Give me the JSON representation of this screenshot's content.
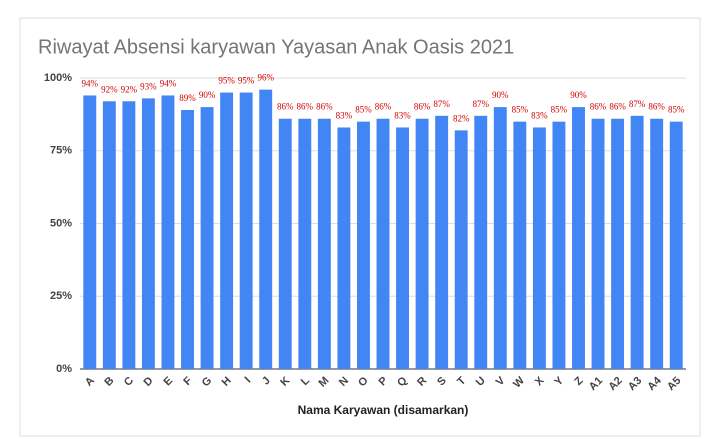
{
  "chart_data": {
    "type": "bar",
    "title": "Riwayat Absensi karyawan Yayasan Anak Oasis 2021",
    "x_label": "Nama Karyawan (disamarkan)",
    "categories": [
      "A",
      "B",
      "C",
      "D",
      "E",
      "F",
      "G",
      "H",
      "I",
      "J",
      "K",
      "L",
      "M",
      "N",
      "O",
      "P",
      "Q",
      "R",
      "S",
      "T",
      "U",
      "V",
      "W",
      "X",
      "Y",
      "Z",
      "A1",
      "A2",
      "A3",
      "A4",
      "A5"
    ],
    "values": [
      94,
      92,
      92,
      93,
      94,
      89,
      90,
      95,
      95,
      96,
      86,
      86,
      86,
      83,
      85,
      86,
      83,
      86,
      87,
      82,
      87,
      90,
      85,
      83,
      85,
      90,
      86,
      86,
      87,
      86,
      85
    ],
    "value_labels": [
      "94%",
      "92%",
      "92%",
      "93%",
      "94%",
      "89%",
      "90%",
      "95%",
      "95%",
      "96%",
      "86%",
      "86%",
      "86%",
      "83%",
      "85%",
      "86%",
      "83%",
      "86%",
      "87%",
      "82%",
      "87%",
      "90%",
      "85%",
      "83%",
      "85%",
      "90%",
      "86%",
      "86%",
      "87%",
      "86%",
      "85%"
    ],
    "color": "#4285f4",
    "ylim": [
      0,
      100
    ],
    "yticks": [
      {
        "value": 0,
        "label": "0%"
      },
      {
        "value": 25,
        "label": "25%"
      },
      {
        "value": 50,
        "label": "50%"
      },
      {
        "value": 75,
        "label": "75%"
      },
      {
        "value": 100,
        "label": "100%"
      }
    ],
    "grid": true
  }
}
